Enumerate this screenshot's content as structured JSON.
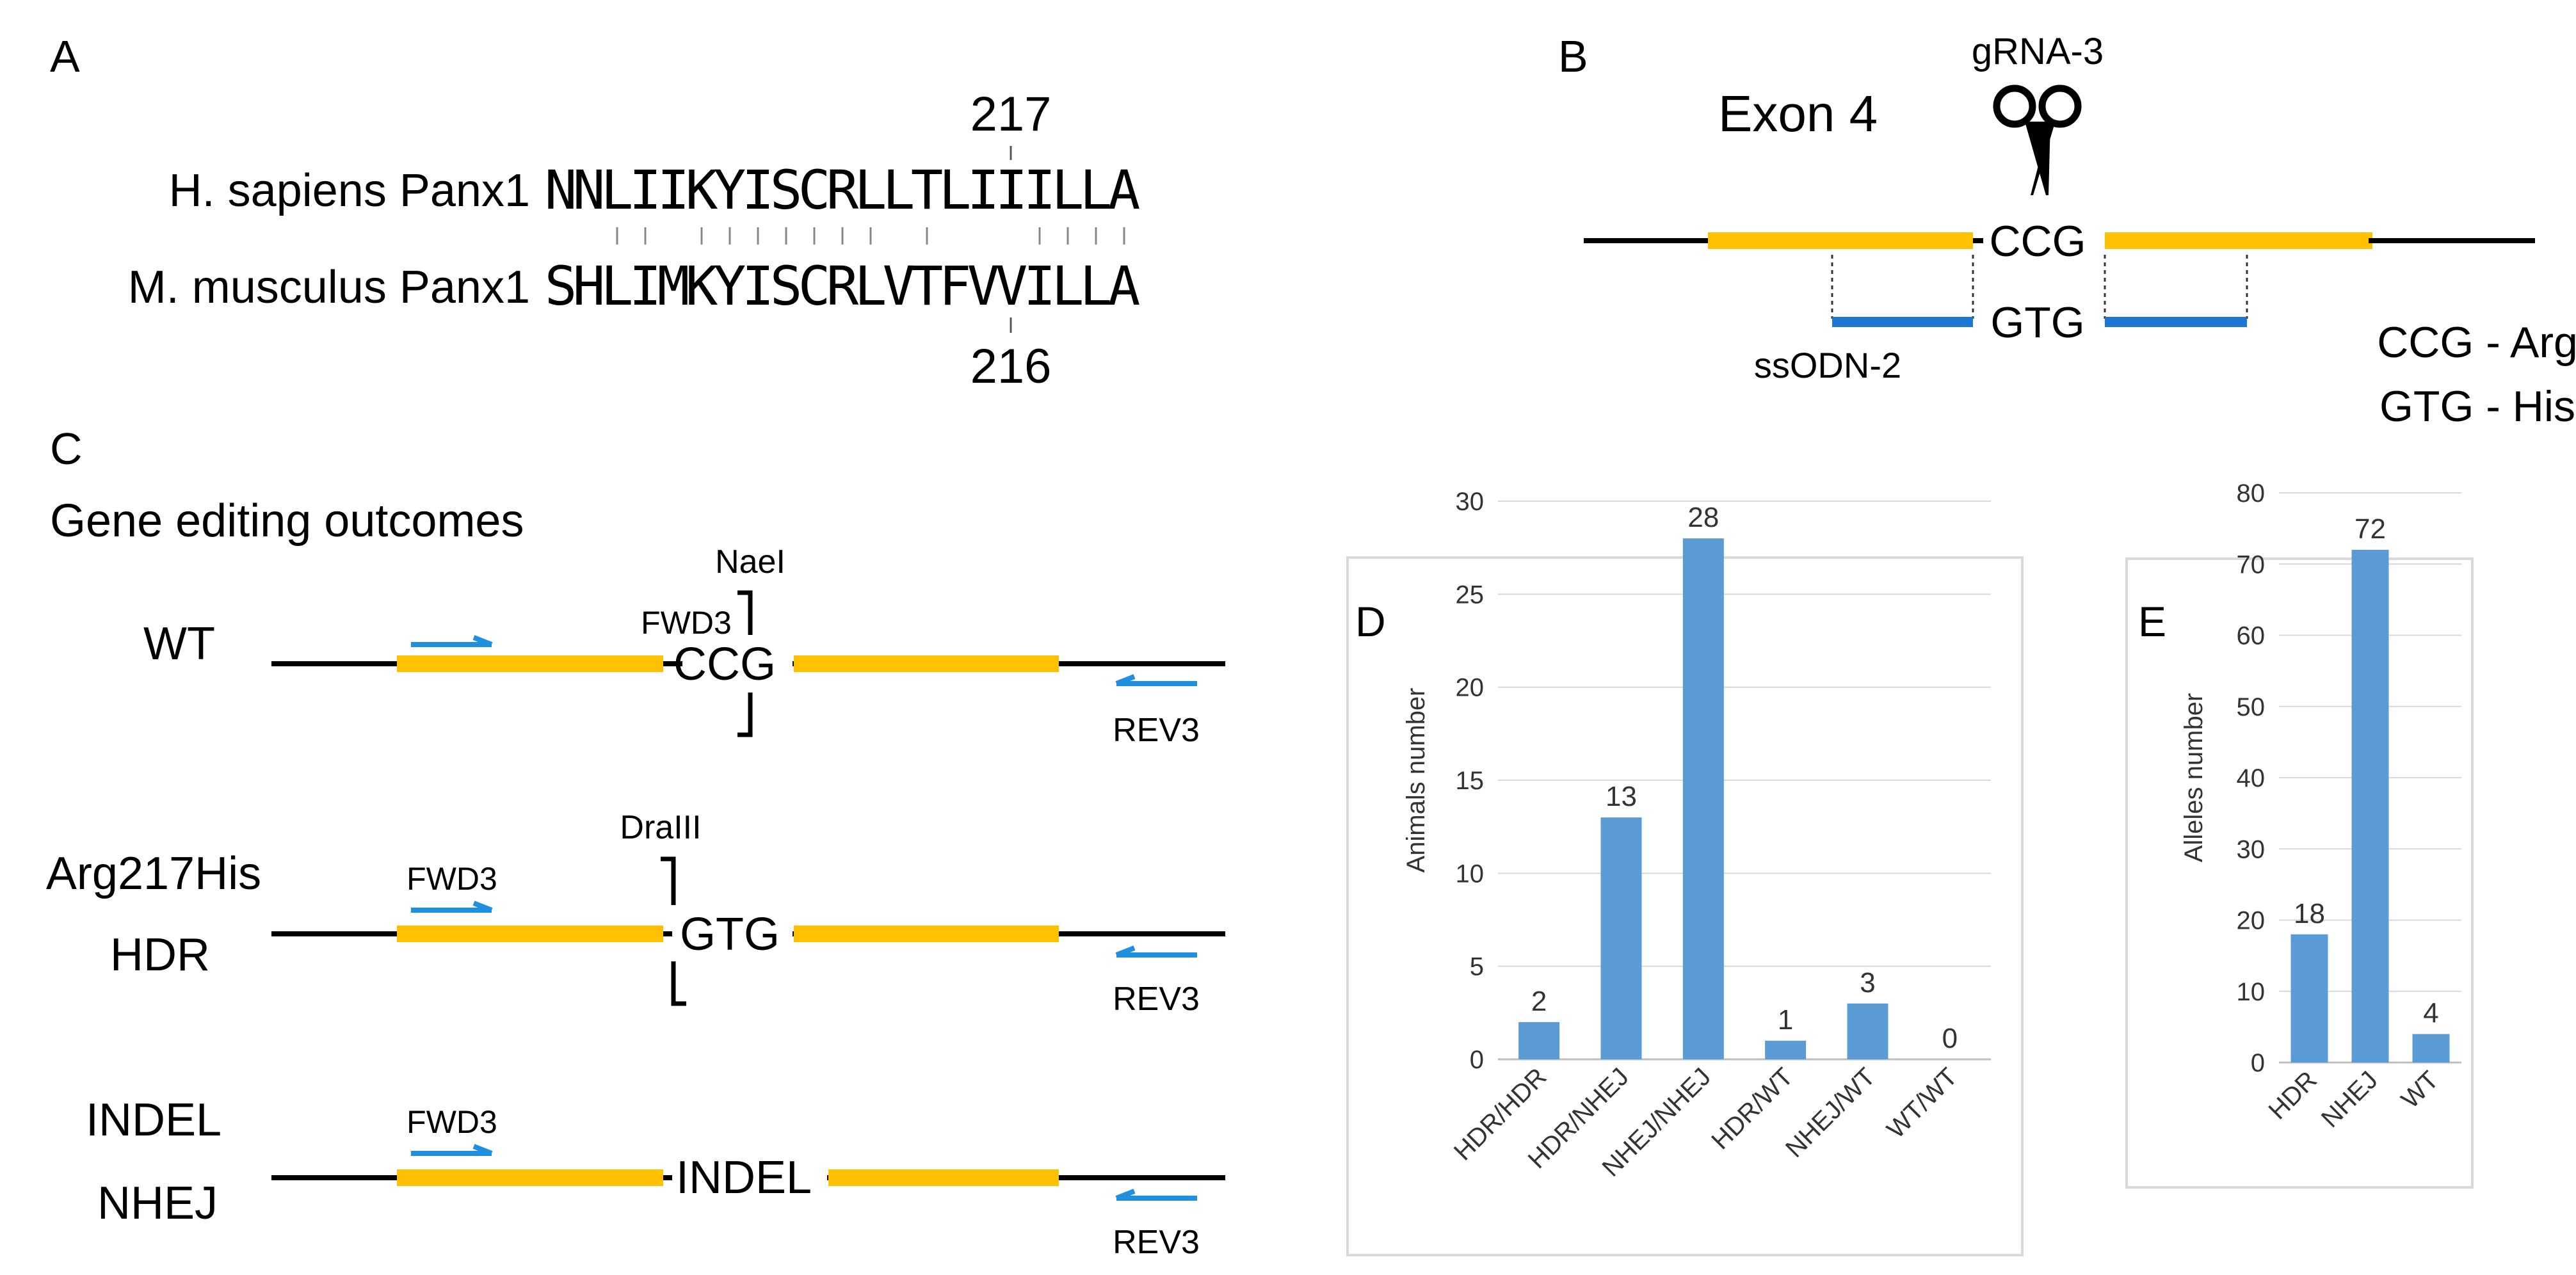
{
  "panels": {
    "a": {
      "label": "A",
      "top_position": "217",
      "bottom_position": "216",
      "human_label": "H. sapiens Panx1",
      "human_seq": [
        "N",
        "N",
        "L",
        "I",
        "I",
        "K",
        "Y",
        "I",
        "S",
        "C",
        "R",
        "L",
        "L",
        "T",
        "L",
        "I",
        "I",
        "I",
        "L",
        "L",
        "A"
      ],
      "mouse_label": "M. musculus Panx1",
      "mouse_seq": [
        "S",
        "H",
        "L",
        "I",
        "M",
        "K",
        "Y",
        "I",
        "S",
        "C",
        "R",
        "L",
        "V",
        "T",
        "F",
        "V",
        "V",
        "I",
        "L",
        "L",
        "A"
      ]
    },
    "b": {
      "label": "B",
      "grna": "gRNA-3",
      "exon": "Exon 4",
      "codon_wt": "CCG",
      "codon_mut": "GTG",
      "ssodn": "ssODN-2",
      "legend_1": "CCG - Arg",
      "legend_2": "GTG - His"
    },
    "c": {
      "label": "C",
      "title": "Gene editing outcomes",
      "fwd": "FWD3",
      "rev": "REV3",
      "rows": [
        {
          "label_1": "WT",
          "label_2": "",
          "center": "CCG",
          "enzyme": "NaeI"
        },
        {
          "label_1": "Arg217His",
          "label_2": "HDR",
          "center": "GTG",
          "enzyme": "DraIII"
        },
        {
          "label_1": "INDEL",
          "label_2": "NHEJ",
          "center": "INDEL",
          "enzyme": ""
        }
      ]
    }
  },
  "colors": {
    "exon": "#ffc000",
    "ssodn": "#1f77d4",
    "primer": "#1f8fe0",
    "bar": "#5b9bd5",
    "line": "#000000",
    "frame": "#d9d9d9",
    "grid": "#d9d9d9",
    "text": "#000000"
  },
  "chart_data": [
    {
      "panel": "D",
      "type": "bar",
      "ylabel": "Animals number",
      "xlabel": "",
      "categories": [
        "HDR/HDR",
        "HDR/NHEJ",
        "NHEJ/NHEJ",
        "HDR/WT",
        "NHEJ/WT",
        "WT/WT"
      ],
      "values": [
        2,
        13,
        28,
        1,
        3,
        0
      ],
      "data_labels": [
        "2",
        "13",
        "28",
        "1",
        "3",
        "0"
      ],
      "ylim": [
        0,
        30
      ],
      "yticks": [
        0,
        5,
        10,
        15,
        20,
        25,
        30
      ],
      "ytick_labels": [
        "0",
        "5",
        "10",
        "15",
        "20",
        "25",
        "30"
      ],
      "grid": true,
      "legend": "none"
    },
    {
      "panel": "E",
      "type": "bar",
      "ylabel": "Alleles number",
      "xlabel": "",
      "categories": [
        "HDR",
        "NHEJ",
        "WT"
      ],
      "values": [
        18,
        72,
        4
      ],
      "data_labels": [
        "18",
        "72",
        "4"
      ],
      "ylim": [
        0,
        80
      ],
      "yticks": [
        0,
        10,
        20,
        30,
        40,
        50,
        60,
        70,
        80
      ],
      "ytick_labels": [
        "0",
        "10",
        "20",
        "30",
        "40",
        "50",
        "60",
        "70",
        "80"
      ],
      "grid": true,
      "legend": "none"
    }
  ]
}
